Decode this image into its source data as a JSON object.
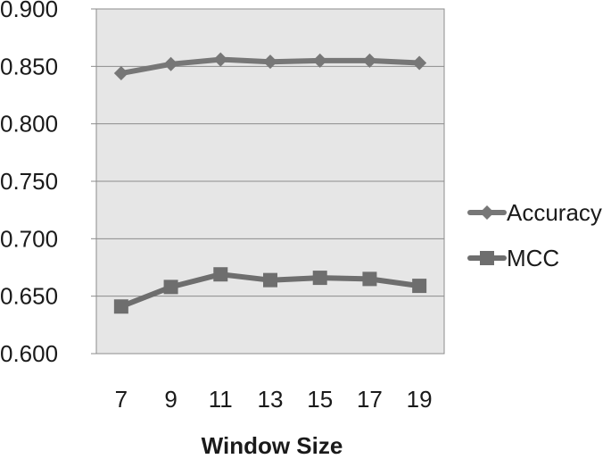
{
  "chart_data": {
    "type": "line",
    "title": "",
    "xlabel": "Window Size",
    "ylabel": "",
    "categories": [
      "7",
      "9",
      "11",
      "13",
      "15",
      "17",
      "19"
    ],
    "ylim": [
      0.6,
      0.9
    ],
    "yticks": [
      "0.600",
      "0.650",
      "0.700",
      "0.750",
      "0.800",
      "0.850",
      "0.900"
    ],
    "grid": "horizontal",
    "plot_background": "#e6e6e6",
    "legend_position": "right",
    "series": [
      {
        "name": "Accuracy",
        "marker": "diamond",
        "color": "#777777",
        "values": [
          0.844,
          0.852,
          0.856,
          0.854,
          0.855,
          0.855,
          0.853
        ]
      },
      {
        "name": "MCC",
        "marker": "square",
        "color": "#6e6e6e",
        "values": [
          0.641,
          0.658,
          0.669,
          0.664,
          0.666,
          0.665,
          0.659
        ]
      }
    ]
  }
}
